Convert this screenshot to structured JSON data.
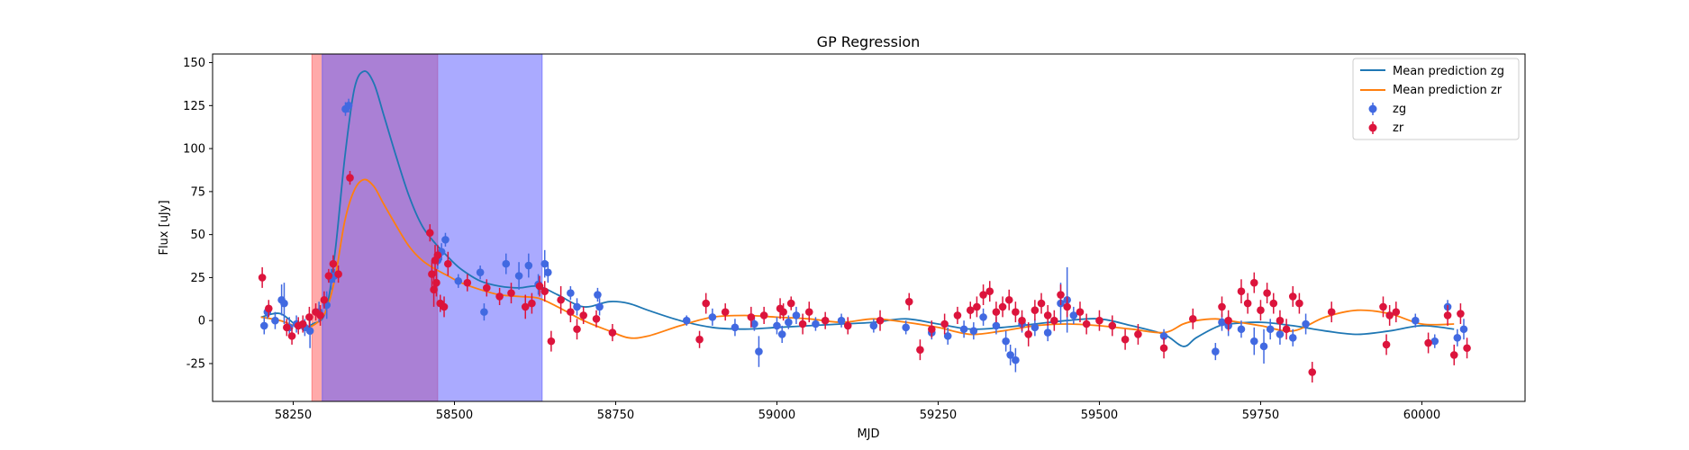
{
  "chart_data": {
    "type": "scatter",
    "title": "GP Regression",
    "xlabel": "MJD",
    "ylabel": "Flux [uJy]",
    "xlim": [
      58125,
      60160
    ],
    "ylim": [
      -47,
      155
    ],
    "xticks": [
      58250,
      58500,
      58750,
      59000,
      59250,
      59500,
      59750,
      60000
    ],
    "yticks": [
      -25,
      0,
      25,
      50,
      75,
      100,
      125,
      150
    ],
    "grid": false,
    "legend_position": "top-right",
    "colors": {
      "mean_zg": "#1f77b4",
      "mean_zr": "#ff7f0e",
      "zg": "#4169e1",
      "zr": "#dc143c",
      "span_red": "#ff5555",
      "span_blue": "#5555ff"
    },
    "shaded_regions": [
      {
        "x0": 58279,
        "x1": 58474,
        "color": "red"
      },
      {
        "x0": 58295,
        "x1": 58636,
        "color": "blue"
      }
    ],
    "series": [
      {
        "name": "Mean prediction zg",
        "kind": "line",
        "x": [
          58200,
          58230,
          58260,
          58280,
          58300,
          58315,
          58330,
          58345,
          58360,
          58375,
          58390,
          58410,
          58430,
          58450,
          58470,
          58490,
          58510,
          58540,
          58570,
          58600,
          58630,
          58660,
          58700,
          58740,
          58770,
          58800,
          58850,
          58900,
          58950,
          59000,
          59050,
          59100,
          59150,
          59200,
          59250,
          59300,
          59350,
          59400,
          59450,
          59500,
          59550,
          59600,
          59630,
          59650,
          59680,
          59700,
          59750,
          59800,
          59850,
          59900,
          59950,
          60000,
          60050
        ],
        "y": [
          2,
          4,
          -4,
          -2,
          5,
          40,
          95,
          135,
          145,
          138,
          120,
          95,
          72,
          55,
          45,
          37,
          30,
          23,
          20,
          19,
          20,
          15,
          8,
          11,
          10,
          6,
          0,
          -4,
          -5,
          -4,
          -3,
          -2,
          -1,
          1,
          -2,
          -5,
          -4,
          -2,
          0,
          1,
          -3,
          -8,
          -15,
          -10,
          -4,
          -2,
          -1,
          -3,
          -6,
          -8,
          -6,
          -3,
          -5
        ]
      },
      {
        "name": "Mean prediction zr",
        "kind": "line",
        "x": [
          58200,
          58230,
          58260,
          58280,
          58300,
          58315,
          58330,
          58345,
          58360,
          58375,
          58390,
          58410,
          58430,
          58450,
          58470,
          58490,
          58510,
          58540,
          58570,
          58600,
          58630,
          58660,
          58700,
          58740,
          58770,
          58800,
          58850,
          58900,
          58950,
          59000,
          59050,
          59100,
          59150,
          59200,
          59250,
          59300,
          59350,
          59400,
          59450,
          59500,
          59550,
          59600,
          59630,
          59650,
          59680,
          59700,
          59750,
          59800,
          59850,
          59900,
          59950,
          60000,
          60050
        ],
        "y": [
          2,
          0,
          -4,
          -3,
          5,
          25,
          58,
          76,
          82,
          78,
          68,
          55,
          43,
          35,
          30,
          26,
          22,
          18,
          15,
          14,
          13,
          8,
          0,
          -6,
          -10,
          -9,
          -3,
          2,
          3,
          2,
          1,
          -1,
          1,
          -1,
          -4,
          -8,
          -6,
          -3,
          -2,
          -3,
          -5,
          -7,
          -2,
          0,
          1,
          0,
          -3,
          -6,
          2,
          6,
          4,
          -2,
          -2
        ]
      },
      {
        "name": "zg",
        "kind": "errorbar",
        "x": [
          58205,
          58210,
          58222,
          58232,
          58236,
          58244,
          58255,
          58268,
          58276,
          58290,
          58302,
          58309,
          58314,
          58331,
          58336,
          58474,
          58480,
          58486,
          58506,
          58540,
          58546,
          58580,
          58600,
          58615,
          58630,
          58640,
          58645,
          58680,
          58690,
          58722,
          58725,
          58860,
          58900,
          58935,
          58965,
          58972,
          59000,
          59008,
          59018,
          59030,
          59060,
          59100,
          59150,
          59200,
          59240,
          59265,
          59290,
          59305,
          59320,
          59340,
          59355,
          59362,
          59370,
          59380,
          59400,
          59420,
          59440,
          59450,
          59460,
          59600,
          59680,
          59690,
          59700,
          59720,
          59740,
          59755,
          59765,
          59780,
          59800,
          59820,
          59990,
          60020,
          60040,
          60055,
          60065
        ],
        "y": [
          -3,
          5,
          0,
          12,
          10,
          -4,
          -2,
          -4,
          -6,
          5,
          9,
          24,
          26,
          123,
          125,
          35,
          40,
          47,
          23,
          28,
          5,
          33,
          26,
          32,
          21,
          33,
          28,
          16,
          8,
          15,
          8,
          0,
          2,
          -4,
          -2,
          -18,
          -3,
          -8,
          -1,
          3,
          -2,
          0,
          -3,
          -4,
          -7,
          -9,
          -5,
          -6,
          2,
          -3,
          -12,
          -20,
          -23,
          -2,
          -4,
          -7,
          10,
          12,
          3,
          -9,
          -18,
          -1,
          -3,
          -5,
          -12,
          -15,
          -5,
          -8,
          -10,
          -2,
          0,
          -12,
          8,
          -10,
          -5
        ],
        "err": [
          5,
          4,
          5,
          9,
          12,
          6,
          5,
          5,
          10,
          6,
          8,
          6,
          4,
          4,
          4,
          5,
          5,
          4,
          4,
          4,
          5,
          6,
          8,
          7,
          6,
          8,
          6,
          4,
          5,
          4,
          5,
          3,
          5,
          5,
          4,
          9,
          5,
          5,
          4,
          5,
          4,
          4,
          4,
          4,
          4,
          5,
          5,
          5,
          5,
          5,
          6,
          6,
          7,
          5,
          5,
          5,
          12,
          19,
          5,
          4,
          5,
          5,
          6,
          5,
          8,
          10,
          6,
          6,
          5,
          6,
          4,
          4,
          4,
          5,
          6
        ]
      },
      {
        "name": "zr",
        "kind": "errorbar",
        "x": [
          58202,
          58212,
          58240,
          58248,
          58258,
          58265,
          58275,
          58285,
          58292,
          58298,
          58305,
          58312,
          58320,
          58338,
          58462,
          58465,
          58468,
          58470,
          58472,
          58474,
          58478,
          58484,
          58490,
          58520,
          58550,
          58570,
          58588,
          58610,
          58620,
          58632,
          58640,
          58650,
          58665,
          58680,
          58690,
          58700,
          58720,
          58745,
          58880,
          58890,
          58920,
          58960,
          58980,
          59005,
          59010,
          59022,
          59040,
          59050,
          59075,
          59110,
          59160,
          59205,
          59222,
          59240,
          59260,
          59280,
          59300,
          59310,
          59320,
          59330,
          59340,
          59350,
          59360,
          59370,
          59380,
          59390,
          59400,
          59410,
          59420,
          59430,
          59440,
          59450,
          59470,
          59480,
          59500,
          59520,
          59540,
          59560,
          59600,
          59645,
          59690,
          59700,
          59720,
          59730,
          59740,
          59750,
          59760,
          59770,
          59780,
          59790,
          59800,
          59810,
          59830,
          59860,
          59940,
          59945,
          59950,
          59960,
          60010,
          60040,
          60050,
          60060,
          60070
        ],
        "y": [
          25,
          7,
          -4,
          -9,
          -3,
          -2,
          2,
          5,
          3,
          12,
          26,
          33,
          27,
          83,
          51,
          27,
          18,
          35,
          22,
          38,
          10,
          8,
          33,
          22,
          19,
          14,
          16,
          8,
          10,
          20,
          17,
          -12,
          12,
          5,
          -5,
          3,
          1,
          -7,
          -11,
          10,
          5,
          2,
          3,
          7,
          5,
          10,
          -2,
          5,
          0,
          -3,
          0,
          11,
          -17,
          -5,
          -2,
          3,
          6,
          8,
          15,
          17,
          5,
          8,
          12,
          5,
          0,
          -8,
          6,
          10,
          3,
          0,
          15,
          8,
          5,
          -2,
          0,
          -3,
          -11,
          -8,
          -16,
          1,
          8,
          0,
          17,
          10,
          22,
          6,
          16,
          10,
          0,
          -5,
          14,
          10,
          -30,
          5,
          8,
          -14,
          3,
          5,
          -13,
          3,
          -20,
          4,
          -16
        ],
        "err": [
          6,
          5,
          5,
          5,
          5,
          5,
          6,
          5,
          6,
          5,
          4,
          5,
          5,
          4,
          5,
          8,
          10,
          9,
          8,
          6,
          5,
          6,
          7,
          5,
          5,
          5,
          6,
          7,
          6,
          6,
          6,
          6,
          8,
          6,
          6,
          5,
          5,
          5,
          5,
          6,
          5,
          6,
          5,
          6,
          5,
          4,
          6,
          6,
          5,
          5,
          6,
          5,
          6,
          5,
          6,
          5,
          5,
          6,
          6,
          6,
          6,
          6,
          6,
          6,
          6,
          7,
          6,
          6,
          6,
          6,
          6,
          6,
          6,
          6,
          6,
          6,
          6,
          6,
          6,
          6,
          6,
          6,
          7,
          6,
          6,
          6,
          6,
          6,
          6,
          6,
          6,
          6,
          6,
          6,
          6,
          6,
          6,
          6,
          6,
          6,
          6,
          6,
          6
        ]
      }
    ]
  }
}
